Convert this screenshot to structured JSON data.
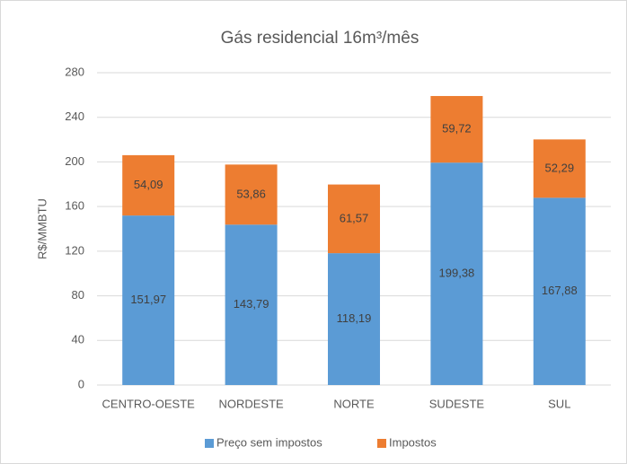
{
  "chart_data": {
    "type": "stacked_bar",
    "title": "Gás residencial 16m³/mês",
    "y_label": "R$/MMBTU",
    "categories": [
      "CENTRO-OESTE",
      "NORDESTE",
      "NORTE",
      "SUDESTE",
      "SUL"
    ],
    "series": [
      {
        "name": "Preço sem impostos",
        "color": "#5b9bd5",
        "values": [
          151.97,
          143.79,
          118.19,
          199.38,
          167.88
        ],
        "value_labels": [
          "151,97",
          "143,79",
          "118,19",
          "199,38",
          "167,88"
        ]
      },
      {
        "name": "Impostos",
        "color": "#ed7d31",
        "values": [
          54.09,
          53.86,
          61.57,
          59.72,
          52.29
        ],
        "value_labels": [
          "54,09",
          "53,86",
          "61,57",
          "59,72",
          "52,29"
        ]
      }
    ],
    "ylim": [
      0,
      280
    ],
    "yticks": [
      0,
      40,
      80,
      120,
      160,
      200,
      240,
      280
    ],
    "grid": true,
    "legend": "bottom"
  }
}
